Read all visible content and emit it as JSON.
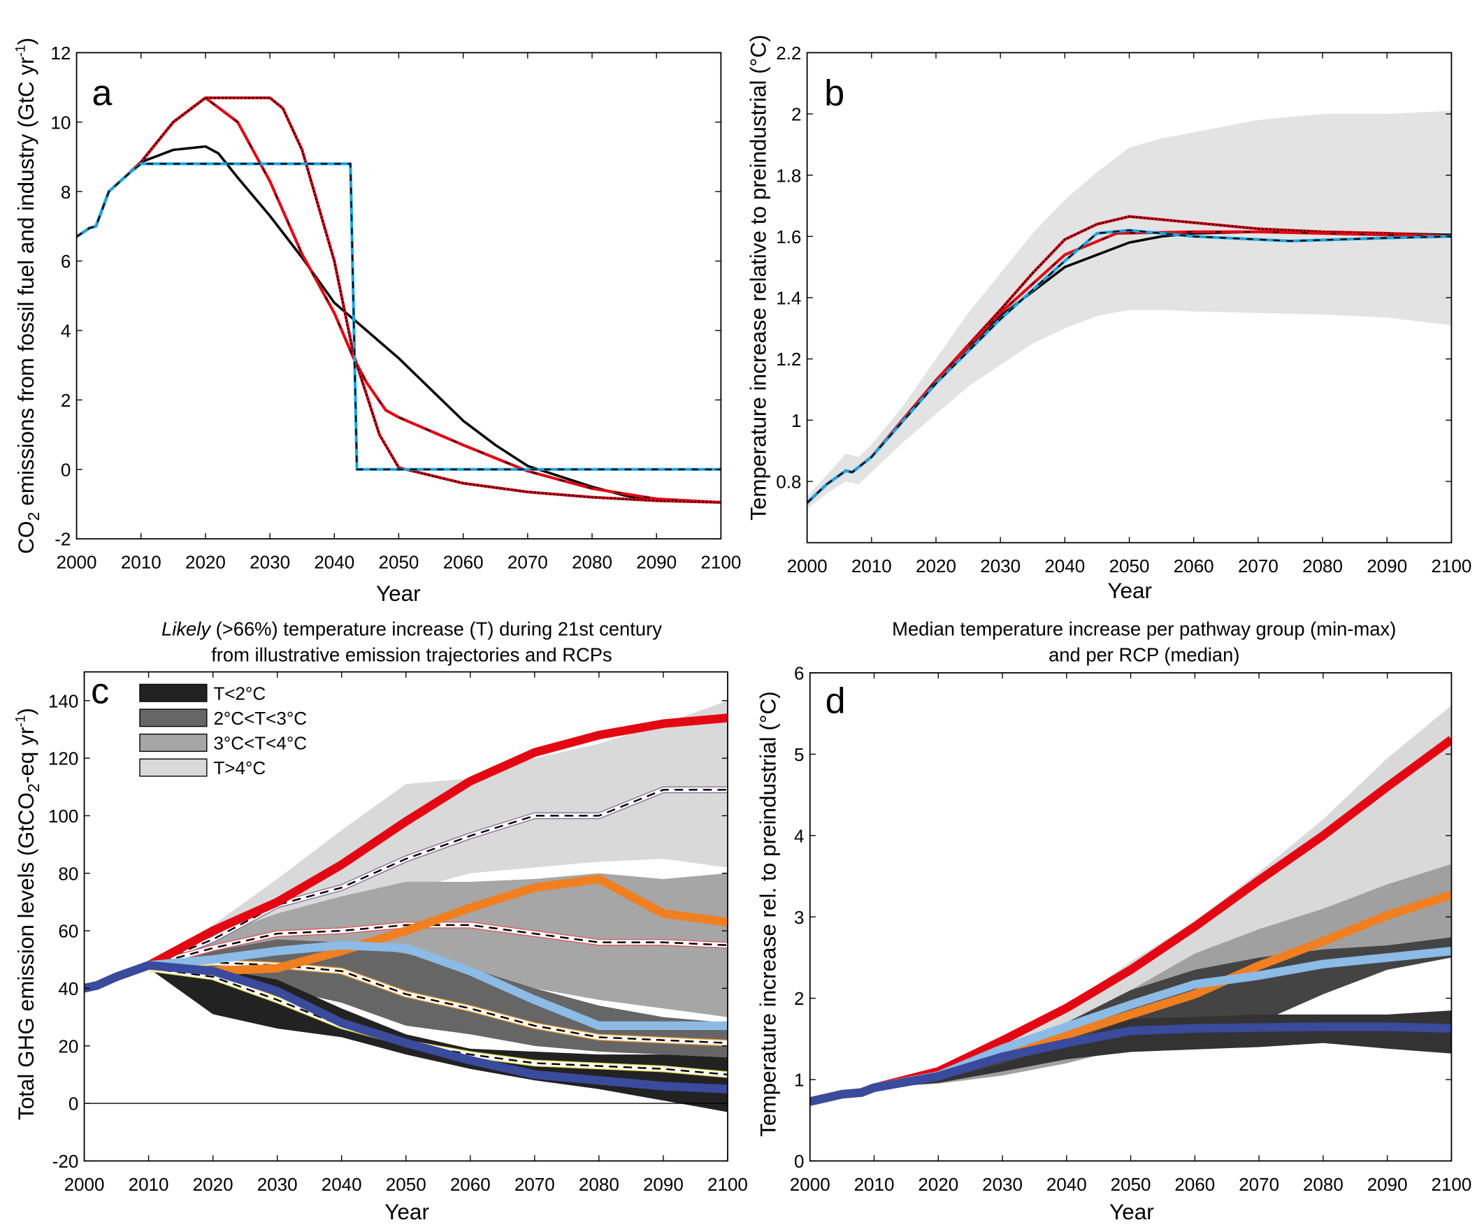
{
  "chart_data": [
    {
      "panel": "a",
      "type": "line",
      "panel_label": "a",
      "xlabel": "Year",
      "ylabel": {
        "pre": "CO",
        "sub": "2",
        "mid": " emissions from fossil fuel and industry (GtC yr",
        "sup": "-1",
        "post": ")"
      },
      "xlim": [
        2000,
        2100
      ],
      "ylim": [
        -2,
        12
      ],
      "xticks": [
        2000,
        2010,
        2020,
        2030,
        2040,
        2050,
        2060,
        2070,
        2080,
        2090,
        2100
      ],
      "yticks": [
        -2,
        0,
        2,
        4,
        6,
        8,
        10,
        12
      ],
      "ytick_labels": [
        "-2",
        "0",
        "2",
        "4",
        "6",
        "8",
        "10",
        "12"
      ],
      "grid": false,
      "series": [
        {
          "style": "black-solid",
          "color": "#000000",
          "x": [
            2000,
            2002,
            2003,
            2005,
            2008,
            2010,
            2015,
            2020,
            2022,
            2025,
            2030,
            2035,
            2040,
            2045,
            2050,
            2055,
            2060,
            2065,
            2070,
            2075,
            2080,
            2085,
            2090,
            2100
          ],
          "y": [
            6.7,
            6.95,
            7.0,
            8.0,
            8.5,
            8.85,
            9.2,
            9.3,
            9.1,
            8.4,
            7.3,
            6.1,
            4.8,
            4.0,
            3.2,
            2.3,
            1.4,
            0.7,
            0.1,
            -0.2,
            -0.5,
            -0.75,
            -0.9,
            -0.95
          ]
        },
        {
          "style": "red-solid",
          "color": "#e30613",
          "x": [
            2000,
            2002,
            2003,
            2005,
            2008,
            2010,
            2015,
            2020,
            2025,
            2030,
            2035,
            2040,
            2043,
            2045,
            2048,
            2050,
            2060,
            2070,
            2080,
            2090,
            2100
          ],
          "y": [
            6.7,
            6.95,
            7.0,
            8.0,
            8.5,
            8.85,
            10.0,
            10.7,
            10.0,
            8.3,
            6.2,
            4.5,
            3.2,
            2.5,
            1.7,
            1.5,
            0.7,
            -0.05,
            -0.55,
            -0.85,
            -0.95
          ]
        },
        {
          "style": "red-dotted",
          "color": "#e30613",
          "x": [
            2000,
            2002,
            2003,
            2005,
            2008,
            2010,
            2015,
            2020,
            2030,
            2032,
            2035,
            2040,
            2043,
            2047,
            2050,
            2060,
            2070,
            2080,
            2090,
            2100
          ],
          "y": [
            6.7,
            6.95,
            7.0,
            8.0,
            8.5,
            8.85,
            10.0,
            10.7,
            10.7,
            10.4,
            9.2,
            6.0,
            3.3,
            1.0,
            0.05,
            -0.4,
            -0.65,
            -0.8,
            -0.9,
            -0.95
          ]
        },
        {
          "style": "blue-dashed",
          "color": "#1ba6e0",
          "x": [
            2000,
            2002,
            2003,
            2005,
            2008,
            2010,
            2042.5,
            2043.5,
            2100
          ],
          "y": [
            6.7,
            6.95,
            7.0,
            8.0,
            8.5,
            8.8,
            8.8,
            0,
            0
          ]
        }
      ]
    },
    {
      "panel": "b",
      "type": "line",
      "panel_label": "b",
      "xlabel": "Year",
      "ylabel": {
        "pre": "Temperature increase relative to preindustrial (°C)",
        "sub": "",
        "mid": "",
        "sup": "",
        "post": ""
      },
      "xlim": [
        2000,
        2100
      ],
      "ylim": [
        0.6,
        2.2
      ],
      "xticks": [
        2000,
        2010,
        2020,
        2030,
        2040,
        2050,
        2060,
        2070,
        2080,
        2090,
        2100
      ],
      "yticks": [
        0.8,
        1.0,
        1.2,
        1.4,
        1.6,
        1.8,
        2.0,
        2.2
      ],
      "ytick_labels": [
        "0.8",
        "1",
        "1.2",
        "1.4",
        "1.6",
        "1.8",
        "2",
        "2.2"
      ],
      "grid": false,
      "bands": [
        {
          "color": "#e3e3e3",
          "x": [
            2000,
            2003,
            2006,
            2008,
            2010,
            2015,
            2020,
            2025,
            2030,
            2035,
            2040,
            2045,
            2050,
            2055,
            2060,
            2070,
            2080,
            2090,
            2100
          ],
          "upper": [
            0.75,
            0.82,
            0.89,
            0.88,
            0.92,
            1.05,
            1.2,
            1.35,
            1.48,
            1.61,
            1.72,
            1.81,
            1.89,
            1.92,
            1.94,
            1.98,
            2.0,
            2.0,
            2.01
          ],
          "lower": [
            0.71,
            0.76,
            0.8,
            0.79,
            0.83,
            0.93,
            1.02,
            1.11,
            1.18,
            1.25,
            1.3,
            1.34,
            1.36,
            1.36,
            1.355,
            1.35,
            1.345,
            1.335,
            1.31
          ]
        }
      ],
      "series": [
        {
          "style": "black-solid",
          "color": "#000000",
          "x": [
            2000,
            2003,
            2006,
            2007,
            2010,
            2020,
            2030,
            2040,
            2050,
            2055,
            2060,
            2070,
            2080,
            2090,
            2100
          ],
          "y": [
            0.73,
            0.79,
            0.835,
            0.83,
            0.88,
            1.12,
            1.34,
            1.5,
            1.58,
            1.6,
            1.61,
            1.615,
            1.615,
            1.61,
            1.605
          ]
        },
        {
          "style": "red-dotted",
          "color": "#e30613",
          "x": [
            2000,
            2003,
            2006,
            2007,
            2010,
            2020,
            2030,
            2035,
            2040,
            2045,
            2050,
            2055,
            2060,
            2070,
            2080,
            2090,
            2100
          ],
          "y": [
            0.73,
            0.79,
            0.835,
            0.83,
            0.88,
            1.13,
            1.36,
            1.48,
            1.59,
            1.64,
            1.665,
            1.655,
            1.645,
            1.625,
            1.615,
            1.61,
            1.6
          ]
        },
        {
          "style": "red-solid",
          "color": "#e30613",
          "x": [
            2000,
            2003,
            2006,
            2007,
            2010,
            2020,
            2030,
            2040,
            2048,
            2060,
            2070,
            2080,
            2090,
            2100
          ],
          "y": [
            0.73,
            0.79,
            0.835,
            0.83,
            0.88,
            1.13,
            1.35,
            1.54,
            1.61,
            1.615,
            1.615,
            1.61,
            1.605,
            1.6
          ]
        },
        {
          "style": "blue-dashed",
          "color": "#1ba6e0",
          "x": [
            2000,
            2003,
            2006,
            2007,
            2010,
            2020,
            2030,
            2040,
            2045,
            2050,
            2060,
            2075,
            2090,
            2100
          ],
          "y": [
            0.73,
            0.79,
            0.835,
            0.83,
            0.88,
            1.12,
            1.33,
            1.52,
            1.61,
            1.62,
            1.6,
            1.585,
            1.595,
            1.6
          ]
        }
      ]
    },
    {
      "panel": "c",
      "type": "area",
      "panel_label": "c",
      "title": {
        "italic": "Likely",
        "line1": " (>66%) temperature increase (T) during 21st century",
        "line2": "from illustrative emission trajectories and RCPs"
      },
      "xlabel": "Year",
      "ylabel": {
        "pre": "Total GHG emission levels (GtCO",
        "sub": "2",
        "mid": "-eq yr",
        "sup": "-1",
        "post": ")"
      },
      "xlim": [
        2000,
        2100
      ],
      "ylim": [
        -20,
        150
      ],
      "xticks": [
        2000,
        2010,
        2020,
        2030,
        2040,
        2050,
        2060,
        2070,
        2080,
        2090,
        2100
      ],
      "yticks": [
        -20,
        0,
        20,
        40,
        60,
        80,
        100,
        120,
        140
      ],
      "ytick_labels": [
        "-20",
        "0",
        "20",
        "40",
        "60",
        "80",
        "100",
        "120",
        "140"
      ],
      "grid": false,
      "zero_line": true,
      "legend": {
        "placement": "top-left",
        "entries": [
          "T<2°C",
          "2°C<T<3°C",
          "3°C<T<4°C",
          "T>4°C"
        ]
      },
      "x": [
        2010,
        2020,
        2030,
        2040,
        2050,
        2060,
        2070,
        2080,
        2090,
        2100
      ],
      "bands": [
        {
          "name": "T>4°C",
          "color": "#d9d9d9",
          "upper": [
            48,
            62,
            78,
            95,
            111,
            113,
            120,
            125,
            132,
            140
          ],
          "lower": [
            47,
            53,
            60,
            68,
            74,
            80,
            82,
            84,
            85,
            82
          ],
          "median": [
            48,
            57,
            69,
            75,
            85,
            93,
            100,
            100,
            109,
            109
          ],
          "median_edge": "#8a6d9a"
        },
        {
          "name": "3°C<T<4°C",
          "color": "#a6a6a6",
          "upper": [
            48,
            58,
            66,
            72,
            77,
            77,
            78,
            80,
            78,
            80
          ],
          "lower": [
            47,
            50,
            50,
            48,
            45,
            42,
            40,
            36,
            33,
            30
          ],
          "median": [
            48,
            54,
            59,
            60,
            62,
            62,
            59,
            56,
            56,
            55
          ],
          "median_edge": "#e0585f"
        },
        {
          "name": "2°C<T<3°C",
          "color": "#666666",
          "upper": [
            48,
            53,
            57,
            56,
            52,
            47,
            40,
            34,
            30,
            28
          ],
          "lower": [
            47,
            45,
            40,
            35,
            27,
            24,
            20,
            18,
            17,
            16
          ],
          "median": [
            48,
            49,
            48,
            46,
            38,
            33,
            27,
            23,
            22,
            21
          ],
          "median_edge": "#f0a030"
        },
        {
          "name": "T<2°C",
          "color": "#222222",
          "upper": [
            48,
            47,
            43,
            33,
            24,
            19,
            18,
            17,
            17,
            16
          ],
          "lower": [
            47,
            31,
            26,
            23,
            17,
            12,
            8,
            5,
            1,
            -3
          ],
          "median": [
            47,
            44,
            36,
            27,
            21,
            17,
            14,
            13,
            12,
            10
          ],
          "median_edge": "#e8d84a"
        }
      ],
      "rcp_history": {
        "x": [
          2000,
          2002,
          2005,
          2010
        ],
        "y": [
          40,
          41,
          44,
          48
        ]
      },
      "series": [
        {
          "color": "#e30613",
          "y": [
            49,
            60,
            70,
            83,
            98,
            112,
            122,
            128,
            132,
            134
          ]
        },
        {
          "color": "#f07f21",
          "y": [
            46,
            46,
            47,
            53,
            60,
            68,
            75,
            78,
            66,
            63
          ]
        },
        {
          "color": "#8cbbe6",
          "y": [
            48,
            50,
            53,
            55,
            54,
            46,
            36,
            27,
            27,
            27
          ]
        },
        {
          "color": "#3a4a9c",
          "y": [
            48,
            46,
            39,
            28,
            21,
            15,
            10,
            8,
            6,
            5
          ]
        }
      ]
    },
    {
      "panel": "d",
      "type": "area",
      "panel_label": "d",
      "title": {
        "italic": "",
        "line1": "Median temperature increase per pathway group (min-max)",
        "line2": "and per RCP (median)"
      },
      "xlabel": "Year",
      "ylabel": {
        "pre": "Temperature increase rel. to preindustrial (°C)",
        "sub": "",
        "mid": "",
        "sup": "",
        "post": ""
      },
      "xlim": [
        2000,
        2100
      ],
      "ylim": [
        0,
        6
      ],
      "xticks": [
        2000,
        2010,
        2020,
        2030,
        2040,
        2050,
        2060,
        2070,
        2080,
        2090,
        2100
      ],
      "yticks": [
        0,
        1,
        2,
        3,
        4,
        5,
        6
      ],
      "ytick_labels": [
        "0",
        "1",
        "2",
        "3",
        "4",
        "5",
        "6"
      ],
      "grid": false,
      "x": [
        2010,
        2020,
        2030,
        2040,
        2050,
        2060,
        2070,
        2080,
        2090,
        2100
      ],
      "bands": [
        {
          "color": "#d9d9d9",
          "upper": [
            0.92,
            1.1,
            1.5,
            1.9,
            2.45,
            2.95,
            3.55,
            4.2,
            4.95,
            5.6
          ],
          "lower": [
            0.9,
            0.97,
            1.1,
            1.3,
            1.6,
            1.95,
            2.3,
            2.7,
            3.1,
            3.6
          ]
        },
        {
          "color": "#a0a0a0",
          "upper": [
            0.92,
            1.05,
            1.3,
            1.7,
            2.1,
            2.55,
            2.85,
            3.1,
            3.4,
            3.65
          ],
          "lower": [
            0.9,
            0.95,
            1.05,
            1.2,
            1.4,
            1.6,
            1.85,
            2.2,
            2.5,
            2.75
          ]
        },
        {
          "color": "#444444",
          "upper": [
            0.92,
            1.02,
            1.25,
            1.7,
            2.1,
            2.35,
            2.5,
            2.6,
            2.65,
            2.75
          ],
          "lower": [
            0.9,
            0.97,
            1.12,
            1.3,
            1.37,
            1.45,
            1.7,
            2.05,
            2.35,
            2.5
          ]
        },
        {
          "color": "#333333",
          "upper": [
            0.92,
            1.0,
            1.2,
            1.45,
            1.75,
            1.77,
            1.8,
            1.8,
            1.8,
            1.85
          ],
          "lower": [
            0.9,
            0.96,
            1.1,
            1.25,
            1.34,
            1.37,
            1.4,
            1.45,
            1.38,
            1.32
          ]
        }
      ],
      "rcp_history": {
        "x": [
          2000,
          2005,
          2008,
          2010
        ],
        "y": [
          0.73,
          0.82,
          0.84,
          0.9
        ]
      },
      "series": [
        {
          "color": "#e30613",
          "y": [
            0.9,
            1.1,
            1.48,
            1.88,
            2.35,
            2.88,
            3.45,
            4.0,
            4.6,
            5.18
          ]
        },
        {
          "color": "#f07f21",
          "y": [
            0.9,
            1.05,
            1.3,
            1.55,
            1.8,
            2.05,
            2.4,
            2.7,
            3.02,
            3.27
          ]
        },
        {
          "color": "#8cbbe6",
          "y": [
            0.9,
            1.05,
            1.38,
            1.65,
            1.92,
            2.17,
            2.28,
            2.42,
            2.5,
            2.58
          ]
        },
        {
          "color": "#3a4a9c",
          "y": [
            0.9,
            1.04,
            1.28,
            1.45,
            1.6,
            1.63,
            1.64,
            1.65,
            1.65,
            1.63
          ]
        }
      ]
    }
  ]
}
